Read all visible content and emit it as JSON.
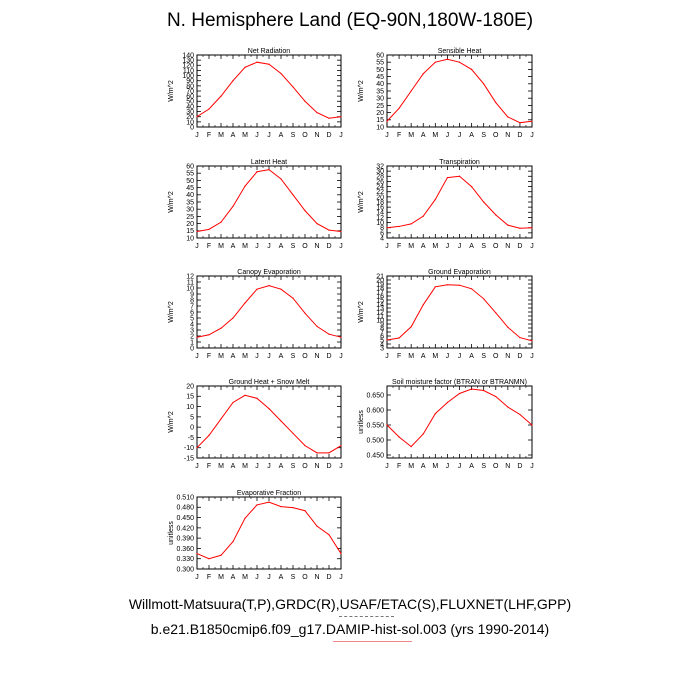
{
  "page": {
    "title": "N. Hemisphere Land (EQ-90N,180W-180E)",
    "caption_line_1": "Willmott-Matsuura(T,P),GRDC(R),USAF/ETAC(S),FLUXNET(LHF,GPP)",
    "caption_line_2": "b.e21.B1850cmip6.f09_g17.DAMIP-hist-sol.003 (yrs 1990-2014)"
  },
  "chart_data": [
    {
      "type": "line",
      "title": "Net Radiation",
      "ylabel": "W/m^2",
      "categories": [
        "J",
        "F",
        "M",
        "A",
        "M",
        "J",
        "J",
        "A",
        "S",
        "O",
        "N",
        "D",
        "J"
      ],
      "ylim": [
        0,
        140
      ],
      "yticks": [
        0,
        10,
        20,
        30,
        40,
        50,
        60,
        70,
        80,
        90,
        100,
        110,
        120,
        130,
        140
      ],
      "series": [
        {
          "values": [
            20,
            35,
            60,
            90,
            116,
            126,
            122,
            104,
            78,
            50,
            28,
            17,
            20
          ],
          "color": "#ff0000"
        }
      ]
    },
    {
      "type": "line",
      "title": "Sensible Heat",
      "ylabel": "W/m^2",
      "categories": [
        "J",
        "F",
        "M",
        "A",
        "M",
        "J",
        "J",
        "A",
        "S",
        "O",
        "N",
        "D",
        "J"
      ],
      "ylim": [
        10,
        60
      ],
      "yticks": [
        10,
        15,
        20,
        25,
        30,
        35,
        40,
        45,
        50,
        55,
        60
      ],
      "series": [
        {
          "values": [
            14,
            23,
            35,
            47,
            55,
            57,
            55,
            50,
            40,
            27,
            17,
            13,
            14
          ],
          "color": "#ff0000"
        }
      ]
    },
    {
      "type": "line",
      "title": "Latent Heat",
      "ylabel": "W/m^2",
      "categories": [
        "J",
        "F",
        "M",
        "A",
        "M",
        "J",
        "J",
        "A",
        "S",
        "O",
        "N",
        "D",
        "J"
      ],
      "ylim": [
        10,
        60
      ],
      "yticks": [
        10,
        15,
        20,
        25,
        30,
        35,
        40,
        45,
        50,
        55,
        60
      ],
      "series": [
        {
          "values": [
            14.5,
            16,
            21,
            32,
            46,
            56,
            57.5,
            51,
            40,
            29,
            20,
            15.5,
            14.5
          ],
          "color": "#ff0000"
        }
      ]
    },
    {
      "type": "line",
      "title": "Transpiration",
      "ylabel": "W/m^2",
      "categories": [
        "J",
        "F",
        "M",
        "A",
        "M",
        "J",
        "J",
        "A",
        "S",
        "O",
        "N",
        "D",
        "J"
      ],
      "ylim": [
        4,
        32
      ],
      "yticks": [
        4,
        6,
        8,
        10,
        12,
        14,
        16,
        18,
        20,
        22,
        24,
        26,
        28,
        30,
        32
      ],
      "series": [
        {
          "values": [
            8,
            8.5,
            9.5,
            12.5,
            19,
            27.5,
            28,
            24,
            18,
            13,
            9,
            7.8,
            8
          ],
          "color": "#ff0000"
        }
      ]
    },
    {
      "type": "line",
      "title": "Canopy Evaporation",
      "ylabel": "W/m^2",
      "categories": [
        "J",
        "F",
        "M",
        "A",
        "M",
        "J",
        "J",
        "A",
        "S",
        "O",
        "N",
        "D",
        "J"
      ],
      "ylim": [
        0,
        12
      ],
      "yticks": [
        0,
        1,
        2,
        3,
        4,
        5,
        6,
        7,
        8,
        9,
        10,
        11,
        12
      ],
      "series": [
        {
          "values": [
            1.8,
            2.2,
            3.3,
            5,
            7.5,
            9.8,
            10.4,
            9.8,
            8.3,
            5.8,
            3.6,
            2.3,
            1.8
          ],
          "color": "#ff0000"
        }
      ]
    },
    {
      "type": "line",
      "title": "Ground Evaporation",
      "ylabel": "W/m^2",
      "categories": [
        "J",
        "F",
        "M",
        "A",
        "M",
        "J",
        "J",
        "A",
        "S",
        "O",
        "N",
        "D",
        "J"
      ],
      "ylim": [
        3,
        21
      ],
      "yticks": [
        3,
        4,
        5,
        6,
        7,
        8,
        9,
        10,
        11,
        12,
        13,
        14,
        15,
        16,
        17,
        18,
        19,
        20,
        21
      ],
      "series": [
        {
          "values": [
            5,
            5.5,
            8.3,
            13.8,
            18.3,
            18.8,
            18.7,
            17.8,
            15.3,
            11.8,
            8.2,
            5.6,
            4.8
          ],
          "color": "#ff0000"
        }
      ]
    },
    {
      "type": "line",
      "title": "Ground Heat + Snow Melt",
      "ylabel": "W/m^2",
      "categories": [
        "J",
        "F",
        "M",
        "A",
        "M",
        "J",
        "J",
        "A",
        "S",
        "O",
        "N",
        "D",
        "J"
      ],
      "ylim": [
        -15,
        20
      ],
      "yticks": [
        -15,
        -10,
        -5,
        0,
        5,
        10,
        15,
        20
      ],
      "series": [
        {
          "values": [
            -10,
            -4,
            4,
            12,
            15.5,
            14,
            9,
            3,
            -3,
            -9,
            -12.5,
            -12.5,
            -9
          ],
          "color": "#ff0000"
        }
      ]
    },
    {
      "type": "line",
      "title": "Soil moisture factor (BTRAN or BTRANMN)",
      "ylabel": "unitless",
      "categories": [
        "J",
        "F",
        "M",
        "A",
        "M",
        "J",
        "J",
        "A",
        "S",
        "O",
        "N",
        "D",
        "J"
      ],
      "ylim": [
        0.44,
        0.68
      ],
      "yticks": [
        0.45,
        0.5,
        0.55,
        0.6,
        0.65
      ],
      "ytick_labels": [
        "0.450",
        "0.500",
        "0.550",
        "0.600",
        "0.650"
      ],
      "series": [
        {
          "values": [
            0.55,
            0.51,
            0.478,
            0.52,
            0.588,
            0.625,
            0.655,
            0.67,
            0.665,
            0.645,
            0.61,
            0.585,
            0.55
          ],
          "color": "#ff0000"
        }
      ]
    },
    {
      "type": "line",
      "title": "Evaporative Fraction",
      "ylabel": "unitless",
      "categories": [
        "J",
        "F",
        "M",
        "A",
        "M",
        "J",
        "J",
        "A",
        "S",
        "O",
        "N",
        "D",
        "J"
      ],
      "ylim": [
        0.3,
        0.51
      ],
      "yticks": [
        0.3,
        0.33,
        0.36,
        0.39,
        0.42,
        0.45,
        0.48,
        0.51
      ],
      "ytick_labels": [
        "0.300",
        "0.330",
        "0.360",
        "0.390",
        "0.420",
        "0.450",
        "0.480",
        "0.510"
      ],
      "series": [
        {
          "values": [
            0.345,
            0.33,
            0.34,
            0.38,
            0.448,
            0.487,
            0.495,
            0.482,
            0.479,
            0.47,
            0.425,
            0.4,
            0.345
          ],
          "color": "#ff0000"
        }
      ]
    }
  ]
}
